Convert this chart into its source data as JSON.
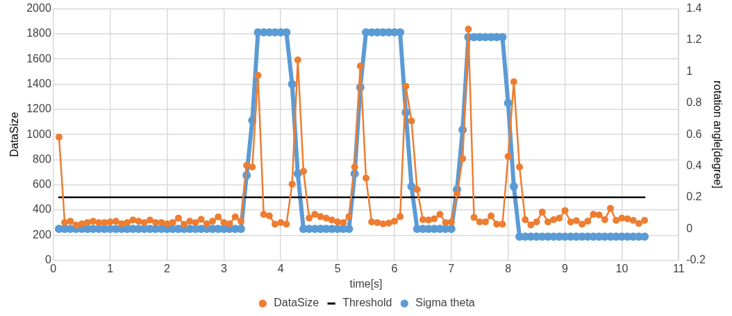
{
  "chart_data": {
    "type": "line",
    "xlabel": "time[s]",
    "ylabel": "DataSize",
    "y2label": "rotation angle[degree]",
    "x": [
      0.1,
      0.2,
      0.3,
      0.4,
      0.5,
      0.6,
      0.7,
      0.8,
      0.9,
      1.0,
      1.1,
      1.2,
      1.3,
      1.4,
      1.5,
      1.6,
      1.7,
      1.8,
      1.9,
      2.0,
      2.1,
      2.2,
      2.3,
      2.4,
      2.5,
      2.6,
      2.7,
      2.8,
      2.9,
      3.0,
      3.1,
      3.2,
      3.3,
      3.4,
      3.5,
      3.6,
      3.7,
      3.8,
      3.9,
      4.0,
      4.1,
      4.2,
      4.3,
      4.4,
      4.5,
      4.6,
      4.7,
      4.8,
      4.9,
      5.0,
      5.1,
      5.2,
      5.3,
      5.4,
      5.5,
      5.6,
      5.7,
      5.8,
      5.9,
      6.0,
      6.1,
      6.2,
      6.3,
      6.4,
      6.5,
      6.6,
      6.7,
      6.8,
      6.9,
      7.0,
      7.1,
      7.2,
      7.3,
      7.4,
      7.5,
      7.6,
      7.7,
      7.8,
      7.9,
      8.0,
      8.1,
      8.2,
      8.3,
      8.4,
      8.5,
      8.6,
      8.7,
      8.8,
      8.9,
      9.0,
      9.1,
      9.2,
      9.3,
      9.4,
      9.5,
      9.6,
      9.7,
      9.8,
      9.9,
      10.0,
      10.1,
      10.2,
      10.3,
      10.4
    ],
    "series": [
      {
        "name": "DataSize",
        "color": "#ed7d31",
        "marker": "circle",
        "values": [
          980,
          300,
          310,
          280,
          290,
          300,
          310,
          300,
          300,
          305,
          310,
          290,
          300,
          320,
          310,
          300,
          320,
          300,
          300,
          290,
          300,
          335,
          285,
          310,
          300,
          325,
          290,
          310,
          345,
          300,
          290,
          345,
          310,
          754,
          742,
          1470,
          365,
          353,
          287,
          299,
          287,
          605,
          1593,
          707,
          335,
          365,
          347,
          335,
          320,
          305,
          300,
          347,
          742,
          1545,
          653,
          305,
          300,
          290,
          295,
          310,
          347,
          1383,
          1108,
          563,
          323,
          320,
          330,
          365,
          300,
          305,
          527,
          808,
          1838,
          341,
          305,
          305,
          353,
          287,
          287,
          826,
          1419,
          742,
          323,
          281,
          305,
          383,
          305,
          323,
          335,
          395,
          305,
          315,
          287,
          310,
          365,
          360,
          323,
          413,
          317,
          335,
          330,
          317,
          293,
          317
        ]
      },
      {
        "name": "Threshold",
        "color": "#000000",
        "marker": "none",
        "x": [
          0.1,
          10.4
        ],
        "values": [
          500,
          500
        ]
      },
      {
        "name": "Sigma theta",
        "color": "#5b9bd5",
        "marker": "circle",
        "axis": "y2",
        "values": [
          0,
          0,
          0,
          0,
          0,
          0,
          0,
          0,
          0,
          0,
          0,
          0,
          0,
          0,
          0,
          0,
          0,
          0,
          0,
          0,
          0,
          0,
          0,
          0,
          0,
          0,
          0,
          0,
          0,
          0,
          0,
          0,
          0,
          0.34,
          0.69,
          1.25,
          1.25,
          1.25,
          1.25,
          1.25,
          1.25,
          0.92,
          0.35,
          0,
          0,
          0,
          0,
          0,
          0,
          0,
          0,
          0,
          0.35,
          0.9,
          1.25,
          1.25,
          1.25,
          1.25,
          1.25,
          1.25,
          1.25,
          0.74,
          0.27,
          0,
          0,
          0,
          0,
          0,
          0,
          0,
          0.25,
          0.63,
          1.22,
          1.22,
          1.22,
          1.22,
          1.22,
          1.22,
          1.22,
          0.8,
          0.27,
          -0.05,
          -0.05,
          -0.05,
          -0.05,
          -0.05,
          -0.05,
          -0.05,
          -0.05,
          -0.05,
          -0.05,
          -0.05,
          -0.05,
          -0.05,
          -0.05,
          -0.05,
          -0.05,
          -0.05,
          -0.05,
          -0.05,
          -0.05,
          -0.05,
          -0.05,
          -0.05
        ]
      }
    ],
    "xlim": [
      0,
      11
    ],
    "xticks": [
      0,
      1,
      2,
      3,
      4,
      5,
      6,
      7,
      8,
      9,
      10,
      11
    ],
    "ylim": [
      0,
      2000
    ],
    "yticks": [
      0,
      200,
      400,
      600,
      800,
      1000,
      1200,
      1400,
      1600,
      1800,
      2000
    ],
    "y2lim": [
      -0.2,
      1.4
    ],
    "y2ticks": [
      -0.2,
      0,
      0.2,
      0.4,
      0.6,
      0.8,
      1,
      1.2,
      1.4
    ],
    "grid": true,
    "legend": "bottom",
    "line_style": "solid"
  }
}
